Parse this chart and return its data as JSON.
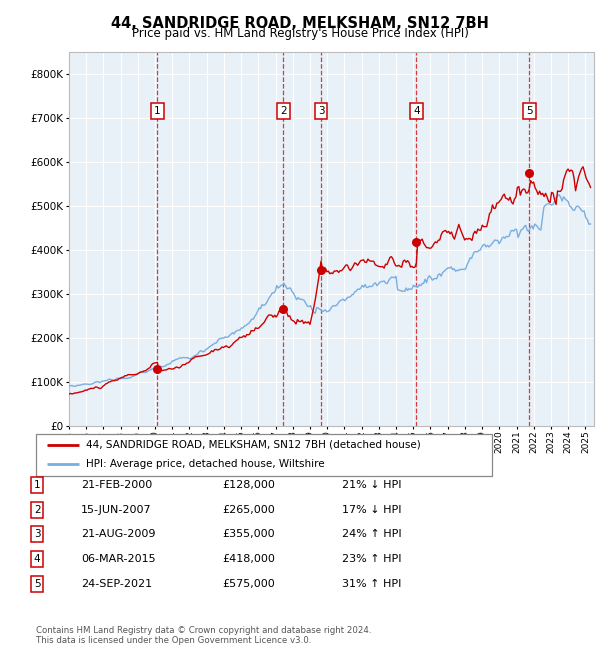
{
  "title": "44, SANDRIDGE ROAD, MELKSHAM, SN12 7BH",
  "subtitle": "Price paid vs. HM Land Registry's House Price Index (HPI)",
  "plot_bg_color": "#e8f1f8",
  "grid_color": "#ffffff",
  "red_line_color": "#cc0000",
  "blue_line_color": "#7aade0",
  "sale_points": [
    {
      "year": 2000.13,
      "price": 128000,
      "label": "1"
    },
    {
      "year": 2007.46,
      "price": 265000,
      "label": "2"
    },
    {
      "year": 2009.64,
      "price": 355000,
      "label": "3"
    },
    {
      "year": 2015.18,
      "price": 418000,
      "label": "4"
    },
    {
      "year": 2021.73,
      "price": 575000,
      "label": "5"
    }
  ],
  "ylim": [
    0,
    850000
  ],
  "xlim": [
    1995.0,
    2025.5
  ],
  "yticks": [
    0,
    100000,
    200000,
    300000,
    400000,
    500000,
    600000,
    700000,
    800000
  ],
  "ytick_labels": [
    "£0",
    "£100K",
    "£200K",
    "£300K",
    "£400K",
    "£500K",
    "£600K",
    "£700K",
    "£800K"
  ],
  "xtick_years": [
    1995,
    1996,
    1997,
    1998,
    1999,
    2000,
    2001,
    2002,
    2003,
    2004,
    2005,
    2006,
    2007,
    2008,
    2009,
    2010,
    2011,
    2012,
    2013,
    2014,
    2015,
    2016,
    2017,
    2018,
    2019,
    2020,
    2021,
    2022,
    2023,
    2024,
    2025
  ],
  "legend_entries": [
    {
      "color": "#cc0000",
      "label": "44, SANDRIDGE ROAD, MELKSHAM, SN12 7BH (detached house)"
    },
    {
      "color": "#7aade0",
      "label": "HPI: Average price, detached house, Wiltshire"
    }
  ],
  "table_rows": [
    {
      "num": "1",
      "date": "21-FEB-2000",
      "price": "£128,000",
      "pct": "21% ↓ HPI"
    },
    {
      "num": "2",
      "date": "15-JUN-2007",
      "price": "£265,000",
      "pct": "17% ↓ HPI"
    },
    {
      "num": "3",
      "date": "21-AUG-2009",
      "price": "£355,000",
      "pct": "24% ↑ HPI"
    },
    {
      "num": "4",
      "date": "06-MAR-2015",
      "price": "£418,000",
      "pct": "23% ↑ HPI"
    },
    {
      "num": "5",
      "date": "24-SEP-2021",
      "price": "£575,000",
      "pct": "31% ↑ HPI"
    }
  ],
  "footer": "Contains HM Land Registry data © Crown copyright and database right 2024.\nThis data is licensed under the Open Government Licence v3.0."
}
